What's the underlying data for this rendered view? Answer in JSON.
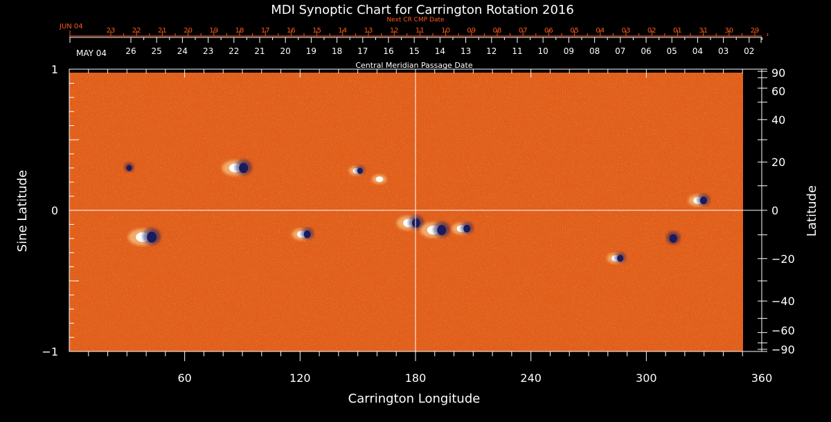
{
  "chart_data": {
    "type": "heatmap",
    "title": "MDI Synoptic Chart for Carrington Rotation 2016",
    "xlabel": "Carrington Longitude",
    "ylabel_left": "Sine Latitude",
    "ylabel_right": "Latitude",
    "xlim": [
      0,
      360
    ],
    "ylim_sine": [
      -1,
      1
    ],
    "x_ticks": [
      60,
      120,
      180,
      240,
      300,
      360
    ],
    "y_ticks_left": [
      {
        "value": 1,
        "label": "1"
      },
      {
        "value": 0,
        "label": "0"
      },
      {
        "value": -1,
        "label": "−1"
      }
    ],
    "y_ticks_right_degrees": [
      90,
      60,
      40,
      20,
      0,
      -20,
      -40,
      -60,
      -90
    ],
    "y_ticks_right_labels": [
      "90",
      "60",
      "40",
      "20",
      "0",
      "−20",
      "−40",
      "−60",
      "−90"
    ],
    "reference_lines": {
      "x": 180,
      "y": 0
    },
    "colormap": {
      "negative": "#1a1a5e",
      "background": "#e85a14",
      "positive": "#ffffff"
    },
    "cmp_axis": {
      "label": "Central Meridian Passage Date",
      "month_label": "MAY 04",
      "dates": [
        "26",
        "25",
        "24",
        "23",
        "22",
        "21",
        "20",
        "19",
        "18",
        "17",
        "16",
        "15",
        "14",
        "13",
        "12",
        "11",
        "10",
        "09",
        "08",
        "07",
        "06",
        "05",
        "04",
        "03",
        "02"
      ]
    },
    "next_cr_axis": {
      "label": "Next CR CMP Date",
      "month_label": "JUN 04",
      "dates": [
        "23",
        "22",
        "21",
        "20",
        "19",
        "18",
        "17",
        "16",
        "15",
        "14",
        "13",
        "12",
        "11",
        "10",
        "09",
        "08",
        "07",
        "06",
        "05",
        "04",
        "03",
        "02",
        "01",
        "31",
        "30",
        "29"
      ],
      "color": "#ff5a1e"
    },
    "active_regions": [
      {
        "lon": 40,
        "sinlat": -0.19,
        "polarity": "mixed",
        "strength": 1.0
      },
      {
        "lon": 88,
        "sinlat": 0.3,
        "polarity": "mixed",
        "strength": 0.9
      },
      {
        "lon": 122,
        "sinlat": -0.17,
        "polarity": "mixed",
        "strength": 0.6
      },
      {
        "lon": 178,
        "sinlat": -0.09,
        "polarity": "mixed",
        "strength": 0.8
      },
      {
        "lon": 191,
        "sinlat": -0.14,
        "polarity": "mixed",
        "strength": 0.9
      },
      {
        "lon": 205,
        "sinlat": -0.13,
        "polarity": "mixed",
        "strength": 0.6
      },
      {
        "lon": 285,
        "sinlat": -0.34,
        "polarity": "mixed",
        "strength": 0.5
      },
      {
        "lon": 312,
        "sinlat": -0.2,
        "polarity": "negative",
        "strength": 0.7
      },
      {
        "lon": 328,
        "sinlat": 0.07,
        "polarity": "mixed",
        "strength": 0.6
      },
      {
        "lon": 150,
        "sinlat": 0.28,
        "polarity": "mixed",
        "strength": 0.4
      },
      {
        "lon": 162,
        "sinlat": 0.22,
        "polarity": "positive",
        "strength": 0.4
      },
      {
        "lon": 30,
        "sinlat": 0.3,
        "polarity": "negative",
        "strength": 0.4
      }
    ]
  }
}
